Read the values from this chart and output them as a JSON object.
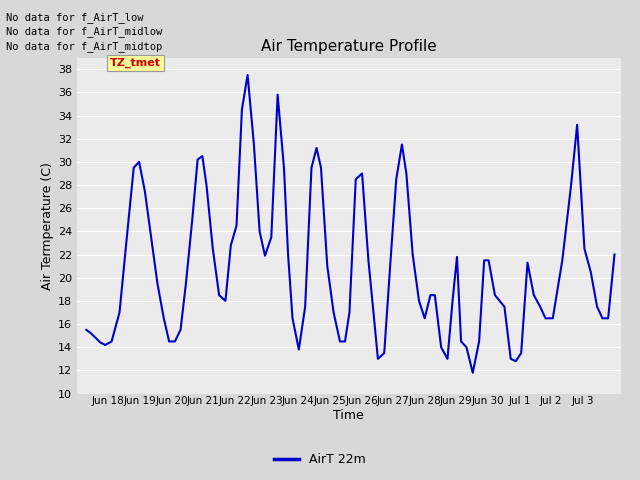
{
  "title": "Air Temperature Profile",
  "xlabel": "Time",
  "ylabel": "Air Termperature (C)",
  "ylim": [
    10,
    39
  ],
  "yticks": [
    10,
    12,
    14,
    16,
    18,
    20,
    22,
    24,
    26,
    28,
    30,
    32,
    34,
    36,
    38
  ],
  "line_color": "#0000CC",
  "line_width": 1.5,
  "fig_bg_color": "#D8D8D8",
  "plot_bg_color": "#EBEBEB",
  "legend_label": "AirT 22m",
  "annotations_text": [
    "No data for f_AirT_low",
    "No data for f_AirT_midlow",
    "No data for f_AirT_midtop"
  ],
  "tz_label": "TZ_tmet",
  "tz_color": "#CC0000",
  "tz_bg": "#FFFF99",
  "xtick_positions": [
    18,
    19,
    20,
    21,
    22,
    23,
    24,
    25,
    26,
    27,
    28,
    29,
    30,
    31,
    32,
    33
  ],
  "xtick_labels": [
    "Jun 18",
    "Jun 19",
    "Jun 20",
    "Jun 21",
    "Jun 22",
    "Jun 23",
    "Jun 24",
    "Jun 25",
    "Jun 26",
    "Jun 27",
    "Jun 28",
    "Jun 29",
    "Jun 30",
    "Jul 1",
    "Jul 2",
    "Jul 3"
  ],
  "xlim": [
    17.0,
    34.2
  ],
  "x_values": [
    17.3,
    17.45,
    17.6,
    17.75,
    17.9,
    18.1,
    18.35,
    18.6,
    18.8,
    18.97,
    19.15,
    19.35,
    19.55,
    19.75,
    19.92,
    20.1,
    20.28,
    20.45,
    20.65,
    20.82,
    20.97,
    21.1,
    21.3,
    21.5,
    21.7,
    21.87,
    22.05,
    22.22,
    22.4,
    22.6,
    22.78,
    22.95,
    23.15,
    23.35,
    23.55,
    23.68,
    23.82,
    24.02,
    24.22,
    24.42,
    24.58,
    24.72,
    24.92,
    25.12,
    25.32,
    25.48,
    25.62,
    25.82,
    26.02,
    26.22,
    26.38,
    26.52,
    26.72,
    26.92,
    27.1,
    27.28,
    27.42,
    27.62,
    27.82,
    28.0,
    28.18,
    28.32,
    28.52,
    28.72,
    28.88,
    29.02,
    29.15,
    29.32,
    29.52,
    29.72,
    29.88,
    30.02,
    30.22,
    30.52,
    30.72,
    30.88,
    31.05,
    31.25,
    31.45,
    31.65,
    31.82,
    32.05,
    32.35,
    32.62,
    32.82,
    33.05,
    33.25,
    33.45,
    33.62,
    33.8,
    34.0
  ],
  "y_values": [
    15.5,
    15.2,
    14.8,
    14.4,
    14.2,
    14.5,
    17.0,
    24.0,
    29.5,
    30.0,
    27.5,
    23.5,
    19.5,
    16.5,
    14.5,
    14.5,
    15.5,
    19.5,
    25.0,
    30.2,
    30.5,
    28.0,
    22.5,
    18.5,
    18.0,
    22.8,
    24.5,
    34.5,
    37.5,
    31.5,
    24.0,
    21.9,
    23.5,
    35.8,
    29.5,
    22.0,
    16.5,
    13.8,
    17.5,
    29.5,
    31.2,
    29.5,
    21.0,
    17.0,
    14.5,
    14.5,
    17.0,
    28.5,
    29.0,
    21.5,
    17.0,
    13.0,
    13.5,
    21.5,
    28.5,
    31.5,
    29.0,
    22.0,
    18.0,
    16.5,
    18.5,
    18.5,
    14.0,
    13.0,
    18.0,
    21.8,
    14.5,
    14.0,
    11.8,
    14.5,
    21.5,
    21.5,
    18.5,
    17.5,
    13.0,
    12.8,
    13.5,
    21.3,
    18.5,
    17.5,
    16.5,
    16.5,
    21.5,
    27.8,
    33.2,
    22.5,
    20.5,
    17.5,
    16.5,
    16.5,
    22.0
  ]
}
